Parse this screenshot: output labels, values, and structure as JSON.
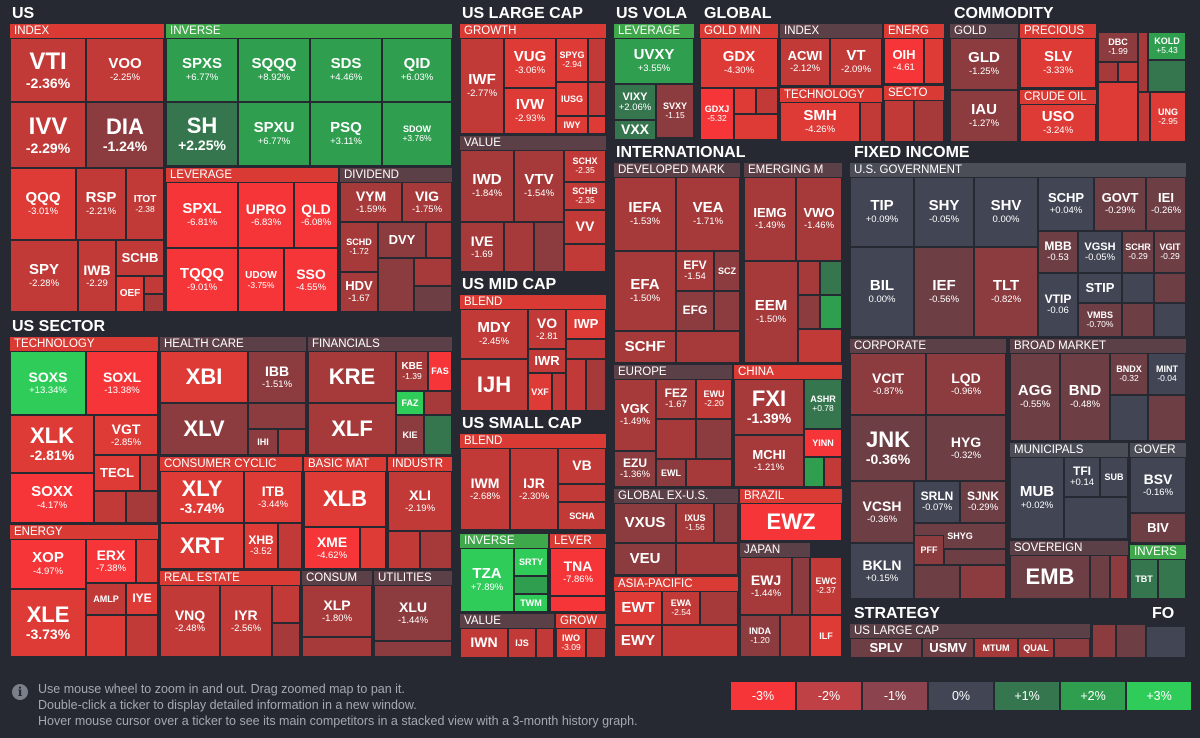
{
  "sections": {
    "us": "US",
    "us_sector": "US SECTOR",
    "us_large_cap": "US LARGE CAP",
    "us_vola": "US VOLA",
    "global": "GLOBAL",
    "commodity": "COMMODITY",
    "us_mid_cap": "US MID CAP",
    "us_small_cap": "US SMALL CAP",
    "international": "INTERNATIONAL",
    "fixed_income": "FIXED INCOME",
    "strategy": "STRATEGY",
    "fo": "FO"
  },
  "subs": {
    "index": "INDEX",
    "inverse": "INVERSE",
    "leverage": "LEVERAGE",
    "dividend": "DIVIDEND",
    "technology": "TECHNOLOGY",
    "health_care": "HEALTH CARE",
    "financials": "FINANCIALS",
    "energy": "ENERGY",
    "consumer_cyclic": "CONSUMER CYCLIC",
    "basic_mat": "BASIC MAT",
    "industr": "INDUSTR",
    "real_estate": "REAL ESTATE",
    "consum": "CONSUM",
    "utilities": "UTILITIES",
    "growth": "GROWTH",
    "value": "VALUE",
    "blend_mid": "BLEND",
    "blend_small": "BLEND",
    "inverse_small": "INVERSE",
    "lever_small": "LEVER",
    "value_small": "VALUE",
    "grow_small": "GROW",
    "vola_leverage": "LEVERAGE",
    "gold_min": "GOLD MIN",
    "index_global": "INDEX",
    "energ_global": "ENERG",
    "technology_global": "TECHNOLOGY",
    "secto_global": "SECTO",
    "gold": "GOLD",
    "precious": "PRECIOUS",
    "crude_oil": "CRUDE OIL",
    "developed": "DEVELOPED MARK",
    "emerging": "EMERGING M",
    "europe": "EUROPE",
    "china": "CHINA",
    "global_ex_us": "GLOBAL EX-U.S.",
    "brazil": "BRAZIL",
    "asia_pacific": "ASIA-PACIFIC",
    "japan": "JAPAN",
    "us_government": "U.S. GOVERNMENT",
    "corporate": "CORPORATE",
    "broad_market": "BROAD MARKET",
    "municipals": "MUNICIPALS",
    "gover": "GOVER",
    "sovereign": "SOVEREIGN",
    "invers_fi": "INVERS",
    "us_large_cap_strategy": "US LARGE CAP"
  },
  "tickers": {
    "VTI": {
      "t": "VTI",
      "p": "-2.36%"
    },
    "VOO": {
      "t": "VOO",
      "p": "-2.25%"
    },
    "IVV": {
      "t": "IVV",
      "p": "-2.29%"
    },
    "DIA": {
      "t": "DIA",
      "p": "-1.24%"
    },
    "QQQ": {
      "t": "QQQ",
      "p": "-3.01%"
    },
    "RSP": {
      "t": "RSP",
      "p": "-2.21%"
    },
    "ITOT": {
      "t": "ITOT",
      "p": "-2.38"
    },
    "SPY": {
      "t": "SPY",
      "p": "-2.28%"
    },
    "IWB": {
      "t": "IWB",
      "p": "-2.29"
    },
    "SCHB": {
      "t": "SCHB",
      "p": ""
    },
    "OEF": {
      "t": "OEF",
      "p": ""
    },
    "SPXS": {
      "t": "SPXS",
      "p": "+6.77%"
    },
    "SQQQ": {
      "t": "SQQQ",
      "p": "+8.92%"
    },
    "SDS": {
      "t": "SDS",
      "p": "+4.46%"
    },
    "QID": {
      "t": "QID",
      "p": "+6.03%"
    },
    "SH": {
      "t": "SH",
      "p": "+2.25%"
    },
    "SPXU": {
      "t": "SPXU",
      "p": "+6.77%"
    },
    "PSQ": {
      "t": "PSQ",
      "p": "+3.11%"
    },
    "SDOW": {
      "t": "SDOW",
      "p": "+3.76%"
    },
    "SPXL": {
      "t": "SPXL",
      "p": "-6.81%"
    },
    "UPRO": {
      "t": "UPRO",
      "p": "-6.83%"
    },
    "QLD": {
      "t": "QLD",
      "p": "-6.08%"
    },
    "TQQQ": {
      "t": "TQQQ",
      "p": "-9.01%"
    },
    "UDOW": {
      "t": "UDOW",
      "p": "-3.75%"
    },
    "SSO": {
      "t": "SSO",
      "p": "-4.55%"
    },
    "VYM": {
      "t": "VYM",
      "p": "-1.59%"
    },
    "VIG": {
      "t": "VIG",
      "p": "-1.75%"
    },
    "SCHD": {
      "t": "SCHD",
      "p": "-1.72"
    },
    "DVY": {
      "t": "DVY",
      "p": ""
    },
    "HDV": {
      "t": "HDV",
      "p": "-1.67"
    },
    "SOXS": {
      "t": "SOXS",
      "p": "+13.34%"
    },
    "SOXL": {
      "t": "SOXL",
      "p": "-13.38%"
    },
    "XLK": {
      "t": "XLK",
      "p": "-2.81%"
    },
    "VGT": {
      "t": "VGT",
      "p": "-2.85%"
    },
    "TECL": {
      "t": "TECL",
      "p": ""
    },
    "SOXX": {
      "t": "SOXX",
      "p": "-4.17%"
    },
    "XBI": {
      "t": "XBI",
      "p": ""
    },
    "IBB": {
      "t": "IBB",
      "p": "-1.51%"
    },
    "XLV": {
      "t": "XLV",
      "p": ""
    },
    "IHI": {
      "t": "IHI",
      "p": ""
    },
    "KRE": {
      "t": "KRE",
      "p": ""
    },
    "KBE": {
      "t": "KBE",
      "p": "-1.39"
    },
    "FAS": {
      "t": "FAS",
      "p": ""
    },
    "FAZ": {
      "t": "FAZ",
      "p": ""
    },
    "XLF": {
      "t": "XLF",
      "p": ""
    },
    "KIE": {
      "t": "KIE",
      "p": ""
    },
    "XOP": {
      "t": "XOP",
      "p": "-4.97%"
    },
    "ERX": {
      "t": "ERX",
      "p": "-7.38%"
    },
    "AMLP": {
      "t": "AMLP",
      "p": ""
    },
    "IYE": {
      "t": "IYE",
      "p": ""
    },
    "XLE": {
      "t": "XLE",
      "p": "-3.73%"
    },
    "XLY": {
      "t": "XLY",
      "p": "-3.74%"
    },
    "ITB": {
      "t": "ITB",
      "p": "-3.44%"
    },
    "XRT": {
      "t": "XRT",
      "p": ""
    },
    "XHB": {
      "t": "XHB",
      "p": "-3.52"
    },
    "XLB": {
      "t": "XLB",
      "p": ""
    },
    "XME": {
      "t": "XME",
      "p": "-4.62%"
    },
    "XLI": {
      "t": "XLI",
      "p": "-2.19%"
    },
    "VNQ": {
      "t": "VNQ",
      "p": "-2.48%"
    },
    "IYR": {
      "t": "IYR",
      "p": "-2.56%"
    },
    "XLP": {
      "t": "XLP",
      "p": "-1.80%"
    },
    "XLU": {
      "t": "XLU",
      "p": "-1.44%"
    },
    "IWF": {
      "t": "IWF",
      "p": "-2.77%"
    },
    "VUG": {
      "t": "VUG",
      "p": "-3.06%"
    },
    "SPYG": {
      "t": "SPYG",
      "p": "-2.94"
    },
    "IVW": {
      "t": "IVW",
      "p": "-2.93%"
    },
    "IUSG": {
      "t": "IUSG",
      "p": ""
    },
    "IWY": {
      "t": "IWY",
      "p": ""
    },
    "IWD": {
      "t": "IWD",
      "p": "-1.84%"
    },
    "VTV": {
      "t": "VTV",
      "p": "-1.54%"
    },
    "SCHX": {
      "t": "SCHX",
      "p": "-2.35"
    },
    "SCHB2": {
      "t": "SCHB",
      "p": "-2.35"
    },
    "VV": {
      "t": "VV",
      "p": ""
    },
    "IVE": {
      "t": "IVE",
      "p": "-1.69"
    },
    "MDY": {
      "t": "MDY",
      "p": "-2.45%"
    },
    "VO": {
      "t": "VO",
      "p": "-2.81"
    },
    "IWP": {
      "t": "IWP",
      "p": ""
    },
    "IWR": {
      "t": "IWR",
      "p": ""
    },
    "IJH": {
      "t": "IJH",
      "p": ""
    },
    "VXF": {
      "t": "VXF",
      "p": ""
    },
    "IWM": {
      "t": "IWM",
      "p": "-2.68%"
    },
    "IJR": {
      "t": "IJR",
      "p": "-2.30%"
    },
    "VB": {
      "t": "VB",
      "p": ""
    },
    "SCHA": {
      "t": "SCHA",
      "p": ""
    },
    "TZA": {
      "t": "TZA",
      "p": "+7.89%"
    },
    "SRTY": {
      "t": "SRTY",
      "p": ""
    },
    "TWM": {
      "t": "TWM",
      "p": ""
    },
    "TNA": {
      "t": "TNA",
      "p": "-7.86%"
    },
    "IWN": {
      "t": "IWN",
      "p": ""
    },
    "IJS": {
      "t": "IJS",
      "p": ""
    },
    "IWO": {
      "t": "IWO",
      "p": "-3.09"
    },
    "UVXY": {
      "t": "UVXY",
      "p": "+3.55%"
    },
    "VIXY": {
      "t": "VIXY",
      "p": "+2.06%"
    },
    "SVXY": {
      "t": "SVXY",
      "p": "-1.15"
    },
    "VXX": {
      "t": "VXX",
      "p": ""
    },
    "GDX": {
      "t": "GDX",
      "p": "-4.30%"
    },
    "GDXJ": {
      "t": "GDXJ",
      "p": "-5.32"
    },
    "ACWI": {
      "t": "ACWI",
      "p": "-2.12%"
    },
    "VT": {
      "t": "VT",
      "p": "-2.09%"
    },
    "OIH": {
      "t": "OIH",
      "p": "-4.61"
    },
    "SMH": {
      "t": "SMH",
      "p": "-4.26%"
    },
    "GLD": {
      "t": "GLD",
      "p": "-1.25%"
    },
    "IAU": {
      "t": "IAU",
      "p": "-1.27%"
    },
    "SLV": {
      "t": "SLV",
      "p": "-3.33%"
    },
    "USO": {
      "t": "USO",
      "p": "-3.24%"
    },
    "DBC": {
      "t": "DBC",
      "p": "-1.99"
    },
    "KOLD": {
      "t": "KOLD",
      "p": "+5.43"
    },
    "UNG": {
      "t": "UNG",
      "p": "-2.95"
    },
    "IEFA": {
      "t": "IEFA",
      "p": "-1.53%"
    },
    "VEA": {
      "t": "VEA",
      "p": "-1.71%"
    },
    "EFA": {
      "t": "EFA",
      "p": "-1.50%"
    },
    "EFV": {
      "t": "EFV",
      "p": "-1.54"
    },
    "SCZ": {
      "t": "SCZ",
      "p": ""
    },
    "EFG": {
      "t": "EFG",
      "p": ""
    },
    "SCHF": {
      "t": "SCHF",
      "p": ""
    },
    "IEMG": {
      "t": "IEMG",
      "p": "-1.49%"
    },
    "VWO": {
      "t": "VWO",
      "p": "-1.46%"
    },
    "EEM": {
      "t": "EEM",
      "p": "-1.50%"
    },
    "VGK": {
      "t": "VGK",
      "p": "-1.49%"
    },
    "FEZ": {
      "t": "FEZ",
      "p": "-1.67"
    },
    "EWU": {
      "t": "EWU",
      "p": "-2.20"
    },
    "EZU": {
      "t": "EZU",
      "p": "-1.36%"
    },
    "EWL": {
      "t": "EWL",
      "p": ""
    },
    "FXI": {
      "t": "FXI",
      "p": "-1.39%"
    },
    "ASHR": {
      "t": "ASHR",
      "p": "+0.78"
    },
    "MCHI": {
      "t": "MCHI",
      "p": "-1.21%"
    },
    "YINN": {
      "t": "YINN",
      "p": ""
    },
    "VXUS": {
      "t": "VXUS",
      "p": ""
    },
    "IXUS": {
      "t": "IXUS",
      "p": "-1.56"
    },
    "VEU": {
      "t": "VEU",
      "p": ""
    },
    "EWZ": {
      "t": "EWZ",
      "p": ""
    },
    "EWT": {
      "t": "EWT",
      "p": ""
    },
    "EWA": {
      "t": "EWA",
      "p": "-2.54"
    },
    "EWY": {
      "t": "EWY",
      "p": ""
    },
    "EWJ": {
      "t": "EWJ",
      "p": "-1.44%"
    },
    "EWC": {
      "t": "EWC",
      "p": "-2.37"
    },
    "INDA": {
      "t": "INDA",
      "p": "-1.20"
    },
    "ILF": {
      "t": "ILF",
      "p": ""
    },
    "TIP": {
      "t": "TIP",
      "p": "+0.09%"
    },
    "SHY": {
      "t": "SHY",
      "p": "-0.05%"
    },
    "SHV": {
      "t": "SHV",
      "p": "0.00%"
    },
    "SCHP": {
      "t": "SCHP",
      "p": "+0.04%"
    },
    "GOVT": {
      "t": "GOVT",
      "p": "-0.29%"
    },
    "IEI": {
      "t": "IEI",
      "p": "-0.26%"
    },
    "MBB": {
      "t": "MBB",
      "p": "-0.53"
    },
    "VGSH": {
      "t": "VGSH",
      "p": "-0.05%"
    },
    "SCHR": {
      "t": "SCHR",
      "p": "-0.29"
    },
    "VGIT": {
      "t": "VGIT",
      "p": "-0.29"
    },
    "BIL": {
      "t": "BIL",
      "p": "0.00%"
    },
    "IEF": {
      "t": "IEF",
      "p": "-0.56%"
    },
    "TLT": {
      "t": "TLT",
      "p": "-0.82%"
    },
    "STIP": {
      "t": "STIP",
      "p": ""
    },
    "VTIP": {
      "t": "VTIP",
      "p": "-0.06"
    },
    "VMBS": {
      "t": "VMBS",
      "p": "-0.70%"
    },
    "VCIT": {
      "t": "VCIT",
      "p": "-0.87%"
    },
    "LQD": {
      "t": "LQD",
      "p": "-0.96%"
    },
    "JNK": {
      "t": "JNK",
      "p": "-0.36%"
    },
    "HYG": {
      "t": "HYG",
      "p": "-0.32%"
    },
    "VCSH": {
      "t": "VCSH",
      "p": "-0.36%"
    },
    "SRLN": {
      "t": "SRLN",
      "p": "-0.07%"
    },
    "SJNK": {
      "t": "SJNK",
      "p": "-0.29%"
    },
    "SHYG": {
      "t": "SHYG",
      "p": ""
    },
    "PFF": {
      "t": "PFF",
      "p": ""
    },
    "BKLN": {
      "t": "BKLN",
      "p": "+0.15%"
    },
    "AGG": {
      "t": "AGG",
      "p": "-0.55%"
    },
    "BND": {
      "t": "BND",
      "p": "-0.48%"
    },
    "BNDX": {
      "t": "BNDX",
      "p": "-0.32"
    },
    "MINT": {
      "t": "MINT",
      "p": "-0.04"
    },
    "MUB": {
      "t": "MUB",
      "p": "+0.02%"
    },
    "TFI": {
      "t": "TFI",
      "p": "+0.14"
    },
    "SUB": {
      "t": "SUB",
      "p": ""
    },
    "BSV": {
      "t": "BSV",
      "p": "-0.16%"
    },
    "BIV": {
      "t": "BIV",
      "p": ""
    },
    "EMB": {
      "t": "EMB",
      "p": ""
    },
    "TBT": {
      "t": "TBT",
      "p": ""
    },
    "SPLV": {
      "t": "SPLV",
      "p": ""
    },
    "USMV": {
      "t": "USMV",
      "p": ""
    },
    "MTUM": {
      "t": "MTUM",
      "p": ""
    },
    "QUAL": {
      "t": "QUAL",
      "p": ""
    }
  },
  "colors": {
    "r5": "#f63538",
    "r4": "#de3a36",
    "r3": "#c23a37",
    "r2": "#a63a3a",
    "r1": "#8c3b3e",
    "r0": "#6e3e45",
    "n0": "#414554",
    "g1": "#35764e",
    "g2": "#2f9e4f",
    "g3": "#30cc5a"
  },
  "footer": {
    "hint1": "Use mouse wheel to zoom in and out. Drag zoomed map to pan it.",
    "hint2": "Double-click a ticker to display detailed information in a new window.",
    "hint3": "Hover mouse cursor over a ticker to see its main competitors in a stacked view with a 3-month history graph.",
    "info_icon": "i"
  },
  "legend": [
    {
      "label": "-3%",
      "color": "#f63538"
    },
    {
      "label": "-2%",
      "color": "#bf4045"
    },
    {
      "label": "-1%",
      "color": "#8b444e"
    },
    {
      "label": "0%",
      "color": "#414554"
    },
    {
      "label": "+1%",
      "color": "#35764e"
    },
    {
      "label": "+2%",
      "color": "#2f9e4f"
    },
    {
      "label": "+3%",
      "color": "#30cc5a"
    }
  ]
}
